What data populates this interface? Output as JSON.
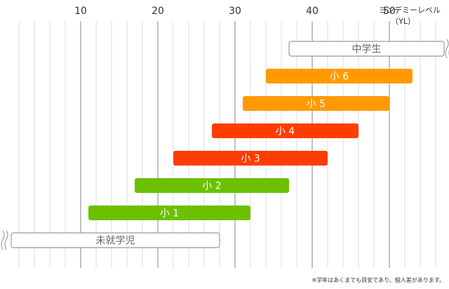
{
  "chart_data": {
    "type": "bar",
    "orientation": "horizontal-range",
    "x_ticks": [
      10,
      20,
      30,
      40,
      50
    ],
    "xlim": [
      0,
      58
    ],
    "ylabel_unit_line1": "ヨンデミーレベル",
    "ylabel_unit_line2": "（YL）",
    "grid": true,
    "bars": [
      {
        "label": "中学生",
        "start": 37,
        "end": 58,
        "open_end": "right",
        "style": "outline",
        "color": "#999999"
      },
      {
        "label": "小 6",
        "start": 34,
        "end": 53,
        "style": "filled",
        "color": "#FF9A00"
      },
      {
        "label": "小 5",
        "start": 31,
        "end": 50,
        "style": "filled",
        "color": "#FF9A00"
      },
      {
        "label": "小 4",
        "start": 27,
        "end": 46,
        "style": "filled",
        "color": "#FF3D00"
      },
      {
        "label": "小 3",
        "start": 22,
        "end": 42,
        "style": "filled",
        "color": "#FF3D00"
      },
      {
        "label": "小 2",
        "start": 17,
        "end": 37,
        "style": "filled",
        "color": "#6CC000"
      },
      {
        "label": "小 1",
        "start": 11,
        "end": 32,
        "style": "filled",
        "color": "#6CC000"
      },
      {
        "label": "未就学児",
        "start": 0,
        "end": 28,
        "open_end": "left",
        "style": "outline",
        "color": "#999999"
      }
    ],
    "footnote": "※学年はあくまでも目安であり、個人差があります。"
  }
}
